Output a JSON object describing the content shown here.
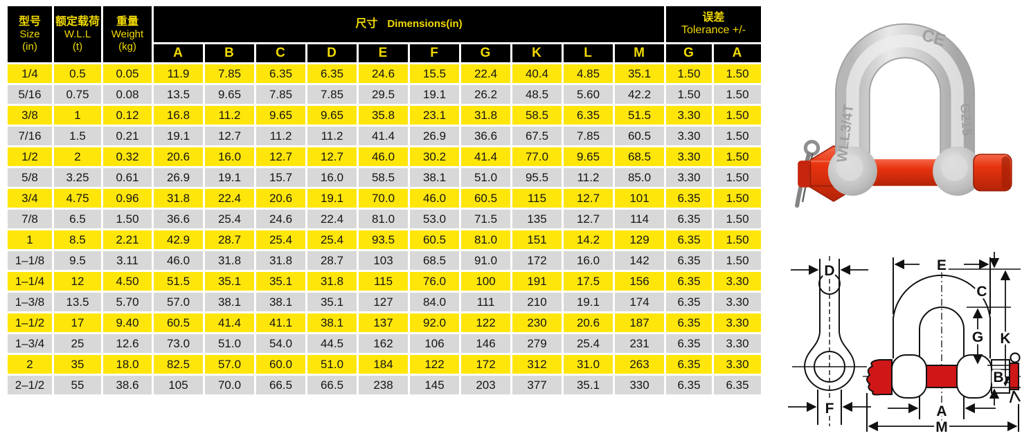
{
  "table": {
    "header": {
      "size": {
        "zh": "型号",
        "en": "Size",
        "unit": "(in)"
      },
      "wll": {
        "zh": "额定载荷",
        "en": "W.L.L",
        "unit": "(t)"
      },
      "weight": {
        "zh": "重量",
        "en": "Weight",
        "unit": "(kg)"
      },
      "dimensions": {
        "zh": "尺寸",
        "en": "Dimensions(in)"
      },
      "tolerance": {
        "zh": "误差",
        "en": "Tolerance +/-"
      },
      "sub_cols": [
        "A",
        "B",
        "C",
        "D",
        "E",
        "F",
        "G",
        "K",
        "L",
        "M",
        "G",
        "A"
      ]
    },
    "rows": [
      [
        "1/4",
        "0.5",
        "0.05",
        "11.9",
        "7.85",
        "6.35",
        "6.35",
        "24.6",
        "15.5",
        "22.4",
        "40.4",
        "4.85",
        "35.1",
        "1.50",
        "1.50"
      ],
      [
        "5/16",
        "0.75",
        "0.08",
        "13.5",
        "9.65",
        "7.85",
        "7.85",
        "29.5",
        "19.1",
        "26.2",
        "48.5",
        "5.60",
        "42.2",
        "1.50",
        "1.50"
      ],
      [
        "3/8",
        "1",
        "0.12",
        "16.8",
        "11.2",
        "9.65",
        "9.65",
        "35.8",
        "23.1",
        "31.8",
        "58.5",
        "6.35",
        "51.5",
        "3.30",
        "1.50"
      ],
      [
        "7/16",
        "1.5",
        "0.21",
        "19.1",
        "12.7",
        "11.2",
        "11.2",
        "41.4",
        "26.9",
        "36.6",
        "67.5",
        "7.85",
        "60.5",
        "3.30",
        "1.50"
      ],
      [
        "1/2",
        "2",
        "0.32",
        "20.6",
        "16.0",
        "12.7",
        "12.7",
        "46.0",
        "30.2",
        "41.4",
        "77.0",
        "9.65",
        "68.5",
        "3.30",
        "1.50"
      ],
      [
        "5/8",
        "3.25",
        "0.61",
        "26.9",
        "19.1",
        "15.7",
        "16.0",
        "58.5",
        "38.1",
        "51.0",
        "95.5",
        "11.2",
        "85.0",
        "3.30",
        "1.50"
      ],
      [
        "3/4",
        "4.75",
        "0.96",
        "31.8",
        "22.4",
        "20.6",
        "19.1",
        "70.0",
        "46.0",
        "60.5",
        "115",
        "12.7",
        "101",
        "6.35",
        "1.50"
      ],
      [
        "7/8",
        "6.5",
        "1.50",
        "36.6",
        "25.4",
        "24.6",
        "22.4",
        "81.0",
        "53.0",
        "71.5",
        "135",
        "12.7",
        "114",
        "6.35",
        "1.50"
      ],
      [
        "1",
        "8.5",
        "2.21",
        "42.9",
        "28.7",
        "25.4",
        "25.4",
        "93.5",
        "60.5",
        "81.0",
        "151",
        "14.2",
        "129",
        "6.35",
        "1.50"
      ],
      [
        "1–1/8",
        "9.5",
        "3.11",
        "46.0",
        "31.8",
        "31.8",
        "28.7",
        "103",
        "68.5",
        "91.0",
        "172",
        "16.0",
        "142",
        "6.35",
        "1.50"
      ],
      [
        "1–1/4",
        "12",
        "4.50",
        "51.5",
        "35.1",
        "35.1",
        "31.8",
        "115",
        "76.0",
        "100",
        "191",
        "17.5",
        "156",
        "6.35",
        "3.30"
      ],
      [
        "1–3/8",
        "13.5",
        "5.70",
        "57.0",
        "38.1",
        "38.1",
        "35.1",
        "127",
        "84.0",
        "111",
        "210",
        "19.1",
        "174",
        "6.35",
        "3.30"
      ],
      [
        "1–1/2",
        "17",
        "9.40",
        "60.5",
        "41.4",
        "41.1",
        "38.1",
        "137",
        "92.0",
        "122",
        "230",
        "20.6",
        "187",
        "6.35",
        "3.30"
      ],
      [
        "1–3/4",
        "25",
        "12.6",
        "73.0",
        "51.0",
        "54.0",
        "44.5",
        "162",
        "106",
        "146",
        "279",
        "25.4",
        "231",
        "6.35",
        "3.30"
      ],
      [
        "2",
        "35",
        "18.0",
        "82.5",
        "57.0",
        "60.0",
        "51.0",
        "184",
        "122",
        "172",
        "312",
        "31.0",
        "263",
        "6.35",
        "3.30"
      ],
      [
        "2–1/2",
        "55",
        "38.6",
        "105",
        "70.0",
        "66.5",
        "66.5",
        "238",
        "145",
        "203",
        "377",
        "35.1",
        "330",
        "6.35",
        "6.35"
      ]
    ]
  },
  "photo": {
    "markings": {
      "top": "CE",
      "left_leg": "WLL3/4T",
      "right_leg": "G215"
    }
  },
  "diagram": {
    "left_view": {
      "top": "D",
      "bottom": "F"
    },
    "right_view": {
      "e": "E",
      "c": "C",
      "g": "G",
      "k": "K",
      "b": "B",
      "a": "A",
      "m": "M"
    }
  },
  "colors": {
    "row_yellow": "#ffe60a",
    "row_gray": "#d8d8d8",
    "header_bg": "#000000",
    "header_text": "#f2da00",
    "pin_red": "#e03015"
  }
}
